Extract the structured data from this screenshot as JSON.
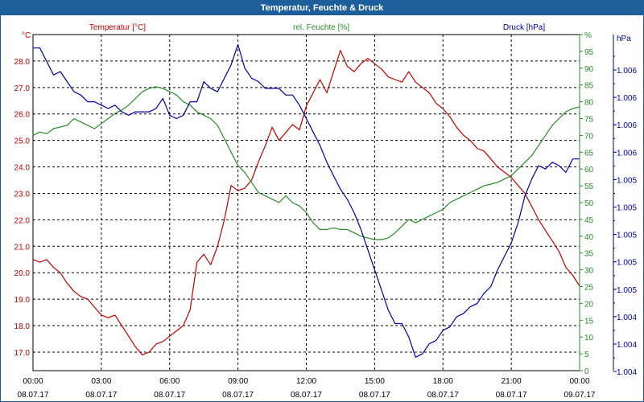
{
  "window": {
    "title": "Temperatur, Feuchte & Druck"
  },
  "chart_data": {
    "type": "line",
    "title": "Temperatur, Feuchte & Druck",
    "grid": true,
    "x_ticks": [
      {
        "time": "00:00",
        "date": "08.07.17"
      },
      {
        "time": "03:00",
        "date": "08.07.17"
      },
      {
        "time": "06:00",
        "date": "08.07.17"
      },
      {
        "time": "09:00",
        "date": "08.07.17"
      },
      {
        "time": "12:00",
        "date": "08.07.17"
      },
      {
        "time": "15:00",
        "date": "08.07.17"
      },
      {
        "time": "18:00",
        "date": "08.07.17"
      },
      {
        "time": "21:00",
        "date": "08.07.17"
      },
      {
        "time": "00:00",
        "date": "09.07.17"
      }
    ],
    "axes": {
      "temp": {
        "label": "Temperatur [°C]",
        "unit": "°C",
        "color": "#c00000",
        "ylim": [
          16.3,
          29.0
        ],
        "ticks": [
          "17.0",
          "18.0",
          "19.0",
          "20.0",
          "21.0",
          "22.0",
          "23.0",
          "24.0",
          "25.0",
          "26.0",
          "27.0",
          "28.0"
        ]
      },
      "hum": {
        "label": "rel. Feuchte [%]",
        "unit": "%",
        "color": "#2a8a2a",
        "ylim": [
          0,
          100
        ],
        "ticks": [
          "0",
          "5",
          "10",
          "15",
          "20",
          "25",
          "30",
          "35",
          "40",
          "45",
          "50",
          "55",
          "60",
          "65",
          "70",
          "75",
          "80",
          "85",
          "90",
          "95",
          "%"
        ]
      },
      "press": {
        "label": "Druck [hPa]",
        "unit": "hPa",
        "color": "#0000a0",
        "ticks": [
          "1.004",
          "1.004",
          "1.004",
          "1.005",
          "1.005",
          "1.005",
          "1.005",
          "1.005",
          "1.006",
          "1.006",
          "1.006",
          "1.006"
        ]
      }
    },
    "series": [
      {
        "name": "Temperatur [°C]",
        "axis": "temp",
        "color": "#c00000",
        "points": [
          [
            0,
            20.5
          ],
          [
            0.3,
            20.4
          ],
          [
            0.6,
            20.5
          ],
          [
            0.9,
            20.2
          ],
          [
            1.2,
            20.0
          ],
          [
            1.5,
            19.6
          ],
          [
            1.8,
            19.3
          ],
          [
            2.1,
            19.1
          ],
          [
            2.4,
            19.0
          ],
          [
            2.7,
            18.7
          ],
          [
            3.0,
            18.4
          ],
          [
            3.3,
            18.3
          ],
          [
            3.6,
            18.4
          ],
          [
            3.9,
            18.0
          ],
          [
            4.2,
            17.6
          ],
          [
            4.5,
            17.2
          ],
          [
            4.8,
            16.9
          ],
          [
            5.1,
            17.0
          ],
          [
            5.4,
            17.3
          ],
          [
            5.7,
            17.4
          ],
          [
            6.0,
            17.6
          ],
          [
            6.3,
            17.8
          ],
          [
            6.6,
            18.0
          ],
          [
            6.9,
            18.6
          ],
          [
            7.2,
            20.4
          ],
          [
            7.5,
            20.7
          ],
          [
            7.8,
            20.3
          ],
          [
            8.1,
            21.0
          ],
          [
            8.4,
            22.0
          ],
          [
            8.7,
            23.3
          ],
          [
            9.0,
            23.1
          ],
          [
            9.3,
            23.2
          ],
          [
            9.6,
            23.5
          ],
          [
            9.9,
            24.2
          ],
          [
            10.2,
            24.8
          ],
          [
            10.5,
            25.5
          ],
          [
            10.8,
            25.0
          ],
          [
            11.1,
            25.3
          ],
          [
            11.4,
            25.6
          ],
          [
            11.7,
            25.4
          ],
          [
            12.0,
            26.3
          ],
          [
            12.3,
            26.8
          ],
          [
            12.6,
            27.3
          ],
          [
            12.9,
            26.8
          ],
          [
            13.2,
            27.6
          ],
          [
            13.5,
            28.4
          ],
          [
            13.8,
            27.8
          ],
          [
            14.1,
            27.6
          ],
          [
            14.4,
            27.9
          ],
          [
            14.7,
            28.1
          ],
          [
            15.0,
            27.9
          ],
          [
            15.3,
            27.7
          ],
          [
            15.6,
            27.4
          ],
          [
            15.9,
            27.3
          ],
          [
            16.2,
            27.2
          ],
          [
            16.5,
            27.6
          ],
          [
            16.8,
            27.2
          ],
          [
            17.1,
            27.0
          ],
          [
            17.4,
            26.8
          ],
          [
            17.7,
            26.4
          ],
          [
            18.0,
            26.2
          ],
          [
            18.3,
            25.9
          ],
          [
            18.6,
            25.5
          ],
          [
            18.9,
            25.2
          ],
          [
            19.2,
            25.0
          ],
          [
            19.5,
            24.7
          ],
          [
            19.8,
            24.6
          ],
          [
            20.1,
            24.3
          ],
          [
            20.4,
            24.0
          ],
          [
            20.7,
            23.8
          ],
          [
            21.0,
            23.6
          ],
          [
            21.3,
            23.3
          ],
          [
            21.6,
            23.0
          ],
          [
            21.9,
            22.5
          ],
          [
            22.2,
            22.0
          ],
          [
            22.5,
            21.6
          ],
          [
            22.8,
            21.2
          ],
          [
            23.1,
            20.8
          ],
          [
            23.4,
            20.2
          ],
          [
            23.7,
            19.9
          ],
          [
            24.0,
            19.5
          ]
        ]
      },
      {
        "name": "rel. Feuchte [%]",
        "axis": "hum",
        "color": "#2a8a2a",
        "points": [
          [
            0,
            70
          ],
          [
            0.3,
            71
          ],
          [
            0.6,
            70.5
          ],
          [
            0.9,
            72
          ],
          [
            1.2,
            72.5
          ],
          [
            1.5,
            73
          ],
          [
            1.8,
            75
          ],
          [
            2.1,
            74
          ],
          [
            2.4,
            73
          ],
          [
            2.7,
            72
          ],
          [
            3.0,
            73.5
          ],
          [
            3.3,
            75
          ],
          [
            3.6,
            76.5
          ],
          [
            3.9,
            77.5
          ],
          [
            4.2,
            79
          ],
          [
            4.5,
            81
          ],
          [
            4.8,
            83
          ],
          [
            5.1,
            84
          ],
          [
            5.4,
            84.5
          ],
          [
            5.7,
            84
          ],
          [
            6.0,
            83
          ],
          [
            6.3,
            82
          ],
          [
            6.6,
            80
          ],
          [
            6.9,
            79
          ],
          [
            7.2,
            77
          ],
          [
            7.5,
            76
          ],
          [
            7.8,
            75
          ],
          [
            8.1,
            73
          ],
          [
            8.4,
            69
          ],
          [
            8.7,
            65
          ],
          [
            9.0,
            61
          ],
          [
            9.3,
            59
          ],
          [
            9.6,
            56
          ],
          [
            9.9,
            53
          ],
          [
            10.2,
            52
          ],
          [
            10.5,
            51
          ],
          [
            10.8,
            50
          ],
          [
            11.1,
            52
          ],
          [
            11.4,
            50
          ],
          [
            11.7,
            49
          ],
          [
            12.0,
            47
          ],
          [
            12.3,
            44
          ],
          [
            12.6,
            42
          ],
          [
            12.9,
            42
          ],
          [
            13.2,
            42.5
          ],
          [
            13.5,
            42
          ],
          [
            13.8,
            42
          ],
          [
            14.1,
            41
          ],
          [
            14.4,
            40
          ],
          [
            14.7,
            39.5
          ],
          [
            15.0,
            39
          ],
          [
            15.3,
            39
          ],
          [
            15.6,
            39.5
          ],
          [
            15.9,
            41
          ],
          [
            16.2,
            43
          ],
          [
            16.5,
            45
          ],
          [
            16.8,
            44
          ],
          [
            17.1,
            45
          ],
          [
            17.4,
            46
          ],
          [
            17.7,
            47
          ],
          [
            18.0,
            48
          ],
          [
            18.3,
            50
          ],
          [
            18.6,
            51
          ],
          [
            18.9,
            52
          ],
          [
            19.2,
            53
          ],
          [
            19.5,
            54
          ],
          [
            19.8,
            55
          ],
          [
            20.1,
            55.5
          ],
          [
            20.4,
            56
          ],
          [
            20.7,
            57
          ],
          [
            21.0,
            58
          ],
          [
            21.3,
            60
          ],
          [
            21.6,
            62
          ],
          [
            21.9,
            64
          ],
          [
            22.2,
            67
          ],
          [
            22.5,
            70
          ],
          [
            22.8,
            73
          ],
          [
            23.1,
            75
          ],
          [
            23.4,
            77
          ],
          [
            23.7,
            78
          ],
          [
            24.0,
            78.5
          ]
        ]
      },
      {
        "name": "Druck [hPa]",
        "axis": "press",
        "color": "#0000a0",
        "points": [
          [
            0,
            0.96
          ],
          [
            0.3,
            0.96
          ],
          [
            0.6,
            0.92
          ],
          [
            0.9,
            0.88
          ],
          [
            1.2,
            0.89
          ],
          [
            1.5,
            0.86
          ],
          [
            1.8,
            0.83
          ],
          [
            2.1,
            0.82
          ],
          [
            2.4,
            0.8
          ],
          [
            2.7,
            0.8
          ],
          [
            3.0,
            0.79
          ],
          [
            3.3,
            0.78
          ],
          [
            3.6,
            0.79
          ],
          [
            3.9,
            0.77
          ],
          [
            4.2,
            0.76
          ],
          [
            4.5,
            0.77
          ],
          [
            4.8,
            0.77
          ],
          [
            5.1,
            0.77
          ],
          [
            5.4,
            0.78
          ],
          [
            5.7,
            0.81
          ],
          [
            6.0,
            0.76
          ],
          [
            6.3,
            0.75
          ],
          [
            6.6,
            0.76
          ],
          [
            6.9,
            0.8
          ],
          [
            7.2,
            0.8
          ],
          [
            7.5,
            0.86
          ],
          [
            7.8,
            0.84
          ],
          [
            8.1,
            0.83
          ],
          [
            8.4,
            0.87
          ],
          [
            8.7,
            0.91
          ],
          [
            9.0,
            0.97
          ],
          [
            9.3,
            0.9
          ],
          [
            9.6,
            0.87
          ],
          [
            9.9,
            0.86
          ],
          [
            10.2,
            0.84
          ],
          [
            10.5,
            0.84
          ],
          [
            10.8,
            0.84
          ],
          [
            11.1,
            0.82
          ],
          [
            11.4,
            0.82
          ],
          [
            11.7,
            0.79
          ],
          [
            12.0,
            0.75
          ],
          [
            12.3,
            0.71
          ],
          [
            12.6,
            0.67
          ],
          [
            12.9,
            0.62
          ],
          [
            13.2,
            0.58
          ],
          [
            13.5,
            0.54
          ],
          [
            13.8,
            0.51
          ],
          [
            14.1,
            0.47
          ],
          [
            14.4,
            0.42
          ],
          [
            14.7,
            0.36
          ],
          [
            15.0,
            0.3
          ],
          [
            15.3,
            0.24
          ],
          [
            15.6,
            0.18
          ],
          [
            15.9,
            0.14
          ],
          [
            16.2,
            0.14
          ],
          [
            16.5,
            0.1
          ],
          [
            16.8,
            0.04
          ],
          [
            17.1,
            0.05
          ],
          [
            17.4,
            0.08
          ],
          [
            17.7,
            0.09
          ],
          [
            18.0,
            0.12
          ],
          [
            18.3,
            0.13
          ],
          [
            18.6,
            0.16
          ],
          [
            18.9,
            0.17
          ],
          [
            19.2,
            0.19
          ],
          [
            19.5,
            0.2
          ],
          [
            19.8,
            0.23
          ],
          [
            20.1,
            0.25
          ],
          [
            20.4,
            0.3
          ],
          [
            20.7,
            0.34
          ],
          [
            21.0,
            0.38
          ],
          [
            21.3,
            0.44
          ],
          [
            21.6,
            0.52
          ],
          [
            21.9,
            0.57
          ],
          [
            22.2,
            0.61
          ],
          [
            22.5,
            0.6
          ],
          [
            22.8,
            0.62
          ],
          [
            23.1,
            0.61
          ],
          [
            23.4,
            0.59
          ],
          [
            23.7,
            0.63
          ],
          [
            24.0,
            0.63
          ]
        ]
      }
    ]
  }
}
